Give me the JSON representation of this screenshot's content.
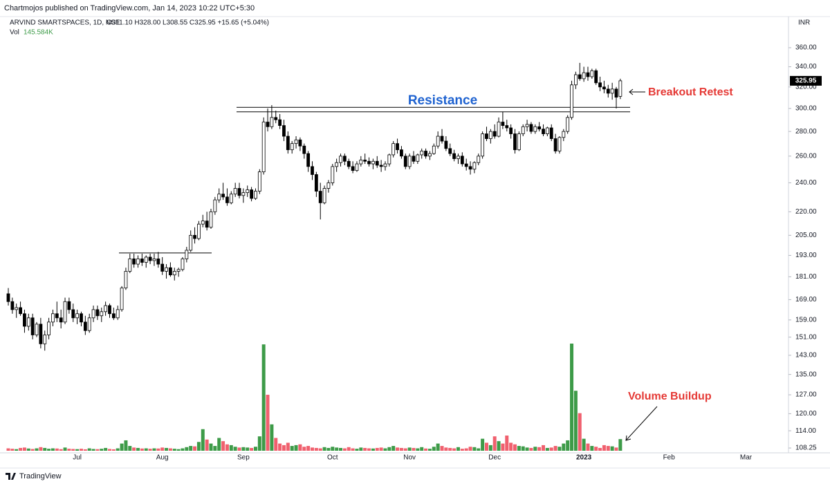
{
  "chart_data": {
    "type": "candlestick",
    "publisher": "Chartmojos published on TradingView.com, Jan 14, 2023 10:22 UTC+5:30",
    "symbol": "ARVIND SMARTSPACES, 1D, NSE",
    "ohlc_header": "O311.10 H328.00 L308.55 C325.95 +15.65 (+5.04%)",
    "currency": "INR",
    "brand": "TradingView",
    "log_scale": true,
    "ylim": [
      106.7,
      392.8
    ],
    "yticks": [
      {
        "value": 108.25,
        "label": "108.25"
      },
      {
        "value": 114,
        "label": "114.00"
      },
      {
        "value": 120,
        "label": "120.00"
      },
      {
        "value": 127,
        "label": "127.00"
      },
      {
        "value": 135,
        "label": "135.00"
      },
      {
        "value": 143,
        "label": "143.00"
      },
      {
        "value": 151,
        "label": "151.00"
      },
      {
        "value": 159,
        "label": "159.00"
      },
      {
        "value": 169,
        "label": "169.00"
      },
      {
        "value": 181,
        "label": "181.00"
      },
      {
        "value": 193,
        "label": "193.00"
      },
      {
        "value": 205,
        "label": "205.00"
      },
      {
        "value": 220,
        "label": "220.00"
      },
      {
        "value": 240,
        "label": "240.00"
      },
      {
        "value": 260,
        "label": "260.00"
      },
      {
        "value": 280,
        "label": "280.00"
      },
      {
        "value": 300,
        "label": "300.00"
      },
      {
        "value": 320,
        "label": "320.00"
      },
      {
        "value": 340,
        "label": "340.00"
      },
      {
        "value": 360,
        "label": "360.00"
      }
    ],
    "categories": [
      null,
      null,
      null,
      null,
      null,
      null,
      null,
      null,
      null,
      null,
      null,
      null,
      null,
      null,
      null,
      null,
      null,
      "Jul",
      null,
      null,
      null,
      null,
      null,
      null,
      null,
      null,
      null,
      null,
      null,
      null,
      null,
      null,
      null,
      null,
      null,
      null,
      null,
      null,
      "Aug",
      null,
      null,
      null,
      null,
      null,
      null,
      null,
      null,
      null,
      null,
      null,
      null,
      null,
      null,
      null,
      null,
      null,
      null,
      null,
      "Sep",
      null,
      null,
      null,
      null,
      null,
      null,
      null,
      null,
      null,
      null,
      null,
      null,
      null,
      null,
      null,
      null,
      null,
      null,
      null,
      null,
      null,
      "Oct",
      null,
      null,
      null,
      null,
      null,
      null,
      null,
      null,
      null,
      null,
      null,
      null,
      null,
      null,
      null,
      null,
      null,
      null,
      "Nov",
      null,
      null,
      null,
      null,
      null,
      null,
      null,
      null,
      null,
      null,
      null,
      null,
      null,
      null,
      null,
      null,
      null,
      null,
      null,
      null,
      "Dec",
      null,
      null,
      null,
      null,
      null,
      null,
      null,
      null,
      null,
      null,
      null,
      null,
      null,
      null,
      null,
      null,
      null,
      null,
      null,
      null,
      null,
      "2023",
      null,
      null,
      null,
      null,
      null,
      null,
      null,
      null,
      null,
      null,
      null,
      null,
      null,
      null,
      null,
      null,
      null,
      null,
      null,
      null,
      "Feb",
      null,
      null,
      null,
      null,
      null,
      null,
      null,
      null,
      null,
      null,
      null,
      null,
      null,
      null,
      null,
      null,
      null,
      null,
      "Mar",
      null,
      null,
      null,
      null,
      null,
      null,
      null,
      null
    ],
    "ohlc": [
      [
        172,
        175,
        166,
        168
      ],
      [
        168,
        170,
        162,
        164
      ],
      [
        164,
        167,
        160,
        165
      ],
      [
        165,
        168,
        161,
        162
      ],
      [
        162,
        164,
        153,
        156
      ],
      [
        156,
        162,
        154,
        160
      ],
      [
        160,
        162,
        150,
        152
      ],
      [
        152,
        158,
        151,
        157
      ],
      [
        157,
        160,
        146,
        148
      ],
      [
        148,
        154,
        145,
        152
      ],
      [
        152,
        160,
        150,
        158
      ],
      [
        158,
        164,
        156,
        162
      ],
      [
        162,
        168,
        158,
        160
      ],
      [
        160,
        164,
        155,
        158
      ],
      [
        158,
        170,
        157,
        168
      ],
      [
        168,
        170,
        162,
        164
      ],
      [
        164,
        167,
        158,
        160
      ],
      [
        160,
        164,
        157,
        162
      ],
      [
        162,
        163,
        156,
        158
      ],
      [
        158,
        161,
        152,
        154
      ],
      [
        154,
        162,
        153,
        160
      ],
      [
        160,
        166,
        158,
        164
      ],
      [
        164,
        166,
        159,
        161
      ],
      [
        161,
        165,
        158,
        163
      ],
      [
        163,
        168,
        161,
        166
      ],
      [
        166,
        167,
        160,
        162
      ],
      [
        162,
        165,
        159,
        160
      ],
      [
        160,
        166,
        159,
        164
      ],
      [
        164,
        176,
        163,
        175
      ],
      [
        175,
        186,
        174,
        184
      ],
      [
        184,
        194,
        183,
        191
      ],
      [
        191,
        194,
        186,
        188
      ],
      [
        188,
        193,
        186,
        191
      ],
      [
        191,
        194,
        187,
        189
      ],
      [
        189,
        193,
        186,
        192
      ],
      [
        192,
        194,
        188,
        190
      ],
      [
        190,
        194,
        187,
        191
      ],
      [
        191,
        195,
        186,
        188
      ],
      [
        188,
        192,
        182,
        184
      ],
      [
        184,
        188,
        180,
        186
      ],
      [
        186,
        189,
        181,
        182
      ],
      [
        182,
        186,
        179,
        184
      ],
      [
        184,
        186,
        181,
        185
      ],
      [
        185,
        192,
        184,
        191
      ],
      [
        191,
        198,
        189,
        196
      ],
      [
        196,
        208,
        195,
        205
      ],
      [
        205,
        210,
        200,
        203
      ],
      [
        203,
        214,
        202,
        212
      ],
      [
        212,
        218,
        210,
        214
      ],
      [
        214,
        220,
        208,
        210
      ],
      [
        210,
        222,
        209,
        220
      ],
      [
        220,
        230,
        218,
        228
      ],
      [
        228,
        236,
        226,
        232
      ],
      [
        232,
        240,
        228,
        230
      ],
      [
        230,
        236,
        224,
        226
      ],
      [
        226,
        234,
        225,
        232
      ],
      [
        232,
        240,
        230,
        236
      ],
      [
        236,
        240,
        229,
        231
      ],
      [
        231,
        236,
        226,
        233
      ],
      [
        233,
        238,
        230,
        235
      ],
      [
        235,
        237,
        227,
        229
      ],
      [
        229,
        236,
        228,
        234
      ],
      [
        234,
        250,
        232,
        248
      ],
      [
        248,
        292,
        246,
        288
      ],
      [
        288,
        300,
        280,
        284
      ],
      [
        284,
        303,
        282,
        292
      ],
      [
        292,
        298,
        287,
        290
      ],
      [
        290,
        295,
        282,
        285
      ],
      [
        285,
        290,
        272,
        276
      ],
      [
        276,
        280,
        262,
        265
      ],
      [
        265,
        272,
        262,
        270
      ],
      [
        270,
        276,
        266,
        273
      ],
      [
        273,
        275,
        264,
        268
      ],
      [
        268,
        270,
        258,
        262
      ],
      [
        262,
        264,
        248,
        252
      ],
      [
        252,
        256,
        242,
        246
      ],
      [
        246,
        248,
        230,
        234
      ],
      [
        234,
        240,
        215,
        226
      ],
      [
        226,
        238,
        225,
        236
      ],
      [
        236,
        242,
        233,
        240
      ],
      [
        240,
        254,
        238,
        252
      ],
      [
        252,
        258,
        248,
        255
      ],
      [
        255,
        262,
        252,
        260
      ],
      [
        260,
        262,
        253,
        256
      ],
      [
        256,
        258,
        250,
        252
      ],
      [
        252,
        256,
        247,
        249
      ],
      [
        249,
        256,
        248,
        254
      ],
      [
        254,
        260,
        252,
        257
      ],
      [
        257,
        262,
        254,
        256
      ],
      [
        256,
        259,
        252,
        254
      ],
      [
        254,
        258,
        250,
        256
      ],
      [
        256,
        260,
        251,
        253
      ],
      [
        253,
        257,
        248,
        252
      ],
      [
        252,
        256,
        249,
        254
      ],
      [
        254,
        262,
        252,
        261
      ],
      [
        261,
        272,
        259,
        270
      ],
      [
        270,
        274,
        262,
        265
      ],
      [
        265,
        268,
        258,
        260
      ],
      [
        260,
        262,
        250,
        252
      ],
      [
        252,
        262,
        250,
        260
      ],
      [
        260,
        264,
        254,
        256
      ],
      [
        256,
        262,
        254,
        261
      ],
      [
        261,
        266,
        258,
        264
      ],
      [
        264,
        266,
        258,
        260
      ],
      [
        260,
        264,
        257,
        262
      ],
      [
        262,
        270,
        261,
        268
      ],
      [
        268,
        280,
        266,
        276
      ],
      [
        276,
        282,
        270,
        272
      ],
      [
        272,
        276,
        264,
        266
      ],
      [
        266,
        270,
        260,
        262
      ],
      [
        262,
        265,
        256,
        258
      ],
      [
        258,
        262,
        254,
        260
      ],
      [
        260,
        263,
        252,
        254
      ],
      [
        254,
        258,
        249,
        252
      ],
      [
        252,
        256,
        246,
        250
      ],
      [
        250,
        256,
        247,
        255
      ],
      [
        255,
        262,
        253,
        260
      ],
      [
        260,
        280,
        258,
        278
      ],
      [
        278,
        284,
        272,
        274
      ],
      [
        274,
        282,
        270,
        280
      ],
      [
        280,
        286,
        274,
        276
      ],
      [
        276,
        292,
        275,
        288
      ],
      [
        288,
        297,
        282,
        285
      ],
      [
        285,
        290,
        280,
        283
      ],
      [
        283,
        286,
        274,
        278
      ],
      [
        278,
        282,
        262,
        265
      ],
      [
        265,
        280,
        264,
        278
      ],
      [
        278,
        286,
        276,
        284
      ],
      [
        284,
        290,
        280,
        286
      ],
      [
        286,
        288,
        278,
        280
      ],
      [
        280,
        286,
        278,
        284
      ],
      [
        284,
        288,
        280,
        282
      ],
      [
        282,
        286,
        276,
        278
      ],
      [
        278,
        284,
        276,
        283
      ],
      [
        283,
        286,
        272,
        274
      ],
      [
        274,
        278,
        262,
        264
      ],
      [
        264,
        276,
        262,
        275
      ],
      [
        275,
        282,
        272,
        280
      ],
      [
        280,
        294,
        278,
        292
      ],
      [
        292,
        326,
        290,
        322
      ],
      [
        322,
        335,
        318,
        332
      ],
      [
        332,
        344,
        326,
        328
      ],
      [
        328,
        340,
        325,
        334
      ],
      [
        334,
        340,
        326,
        330
      ],
      [
        330,
        338,
        328,
        336
      ],
      [
        336,
        338,
        322,
        324
      ],
      [
        324,
        330,
        316,
        320
      ],
      [
        320,
        326,
        314,
        318
      ],
      [
        318,
        322,
        310,
        314
      ],
      [
        314,
        324,
        308,
        318
      ],
      [
        318,
        320,
        300,
        310.3
      ],
      [
        311.1,
        328,
        308.55,
        325.95
      ],
      null,
      null,
      null,
      null,
      null,
      null,
      null,
      null,
      null,
      null,
      null,
      null,
      null,
      null,
      null,
      null,
      null,
      null,
      null,
      null,
      null,
      null,
      null,
      null,
      null,
      null,
      null,
      null,
      null,
      null,
      null,
      null,
      null,
      null,
      null,
      null,
      null,
      null,
      null,
      null
    ],
    "candle_up_color": "#ffffff",
    "candle_down_color": "#000000",
    "volume": {
      "name": "Vol",
      "last_label": "145.584K",
      "up_color": "#3d9b48",
      "down_color": "#f0606e",
      "values": [
        30,
        25,
        20,
        35,
        40,
        28,
        22,
        30,
        45,
        35,
        25,
        30,
        28,
        20,
        40,
        25,
        22,
        20,
        25,
        18,
        30,
        22,
        20,
        25,
        35,
        22,
        18,
        30,
        90,
        130,
        60,
        40,
        35,
        28,
        30,
        25,
        30,
        28,
        40,
        35,
        30,
        25,
        20,
        30,
        45,
        60,
        55,
        110,
        270,
        140,
        90,
        60,
        160,
        120,
        80,
        70,
        50,
        40,
        45,
        40,
        35,
        50,
        180,
        1330,
        700,
        330,
        160,
        90,
        70,
        100,
        60,
        70,
        80,
        50,
        60,
        40,
        35,
        30,
        45,
        35,
        50,
        40,
        35,
        30,
        45,
        30,
        25,
        40,
        35,
        30,
        28,
        35,
        40,
        30,
        45,
        60,
        40,
        35,
        30,
        40,
        35,
        30,
        45,
        28,
        25,
        50,
        90,
        60,
        40,
        35,
        30,
        45,
        25,
        30,
        50,
        45,
        30,
        150,
        100,
        70,
        180,
        120,
        90,
        190,
        100,
        80,
        60,
        55,
        40,
        35,
        50,
        45,
        70,
        35,
        40,
        60,
        50,
        90,
        130,
        1340,
        750,
        470,
        150,
        90,
        60,
        50,
        35,
        70,
        60,
        55,
        40,
        145.584,
        null,
        null,
        null,
        null,
        null,
        null,
        null,
        null,
        null,
        null,
        null,
        null,
        null,
        null,
        null,
        null,
        null,
        null,
        null,
        null,
        null,
        null,
        null,
        null,
        null,
        null,
        null,
        null,
        null,
        null,
        null,
        null,
        null,
        null,
        null,
        null,
        null,
        null,
        null,
        null
      ]
    },
    "levels": [
      {
        "value": 301
      },
      {
        "value": 297
      },
      {
        "value": 194.4
      }
    ],
    "annotations": {
      "resistance": "Resistance",
      "breakout": "Breakout Retest",
      "volume": "Volume Buildup"
    }
  }
}
